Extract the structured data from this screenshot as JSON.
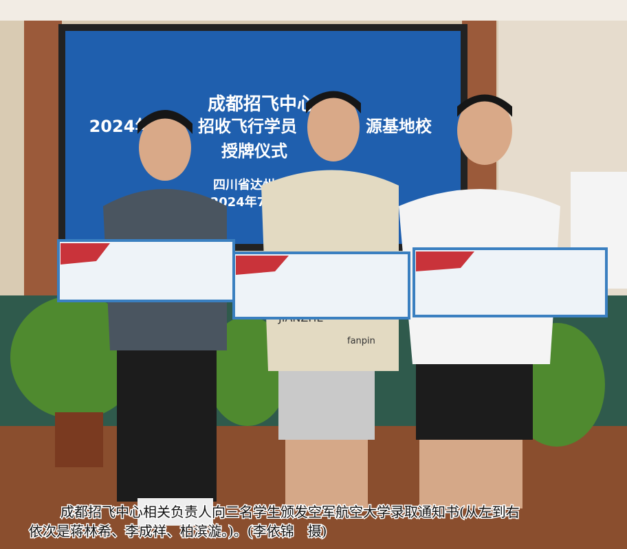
{
  "banner": {
    "lines": [
      "成都招飞中心",
      "2024年",
      "招收飞行学员",
      "源基地校",
      "授牌仪式",
      "四川省达州",
      "2024年7月"
    ]
  },
  "shirt_texts": [
    "JIANZHE",
    "fanpin"
  ],
  "caption": {
    "lines": [
      "成都招飞中心相关负责人向三名学生颁发空军航空大学录取通知书(从左到右",
      "依次是蒋林希、李成祥、柏滨漩。)。(李依锦　摄)"
    ]
  }
}
